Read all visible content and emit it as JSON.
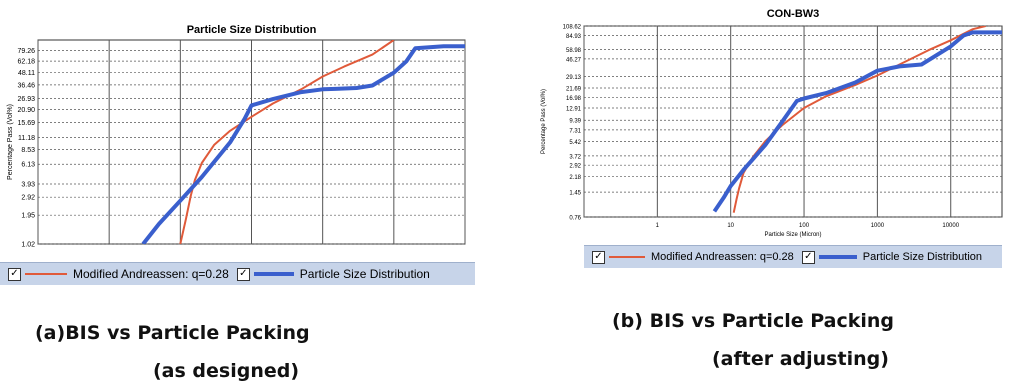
{
  "colors": {
    "model": "#e05a3a",
    "psd": "#3a5fcd",
    "grid": "#555555",
    "legend_bg": "#c7d4e9"
  },
  "chart_data": [
    {
      "type": "line",
      "title": "Particle Size Distribution",
      "xlabel": "",
      "ylabel": "Percentage Pass (Vol%)",
      "x_scale": "log",
      "xlim": [
        0.1,
        100000
      ],
      "ylim": [
        1.02,
        100
      ],
      "y_ticks": [
        "79.26",
        "62.18",
        "48.11",
        "36.46",
        "26.93",
        "20.90",
        "15.69",
        "11.18",
        "8.53",
        "6.13",
        "3.93",
        "2.92",
        "1.95",
        "1.02"
      ],
      "series": [
        {
          "name": "Modified Andreassen:  q=0.28",
          "style": "model",
          "x": [
            10,
            12,
            14,
            16,
            20,
            30,
            50,
            100,
            200,
            500,
            1000,
            2000,
            5000,
            10000
          ],
          "y": [
            1.02,
            1.8,
            3.0,
            4.3,
            6.3,
            9.5,
            13.0,
            17.8,
            24.0,
            33.0,
            44.0,
            55.0,
            72.0,
            100
          ]
        },
        {
          "name": "Particle Size Distribution",
          "style": "psd",
          "x": [
            3,
            5,
            10,
            20,
            50,
            80,
            100,
            200,
            500,
            1000,
            1500,
            3000,
            5000,
            10000,
            15000,
            20000,
            50000,
            100000
          ],
          "y": [
            1.02,
            1.6,
            2.7,
            4.6,
            10.0,
            17.0,
            23.0,
            26.5,
            31.0,
            33.0,
            33.3,
            34.0,
            36.0,
            48.0,
            62.0,
            83.0,
            87.0,
            87.0
          ]
        }
      ],
      "legend": {
        "model_label": "Modified Andreassen:  q=0.28",
        "psd_label": "Particle Size Distribution",
        "checked": "✓"
      },
      "caption_line1": "(a)BIS vs Particle Packing",
      "caption_line2": "(as designed)"
    },
    {
      "type": "line",
      "title": "CON-BW3",
      "xlabel": "Particle Size (Micron)",
      "ylabel": "Percentage Pass (Vol%)",
      "x_scale": "log",
      "xlim": [
        0.1,
        50000
      ],
      "ylim": [
        0.76,
        108.62
      ],
      "x_ticks": [
        "1",
        "10",
        "100",
        "1000",
        "10000"
      ],
      "y_ticks": [
        "108.62",
        "84.93",
        "58.98",
        "46.27",
        "29.13",
        "21.69",
        "16.98",
        "12.91",
        "9.39",
        "7.31",
        "5.42",
        "3.72",
        "2.92",
        "2.18",
        "1.45",
        "0.76"
      ],
      "series": [
        {
          "name": "Modified Andreassen:  q=0.28",
          "style": "model",
          "x": [
            11,
            12,
            13,
            15,
            20,
            30,
            50,
            100,
            200,
            500,
            1000,
            2000,
            5000,
            10000,
            20000,
            30000
          ],
          "y": [
            0.85,
            1.2,
            1.6,
            2.4,
            3.6,
            5.5,
            8.2,
            12.9,
            17.5,
            23.5,
            30.0,
            40.0,
            58.0,
            75.0,
            100.0,
            108.62
          ]
        },
        {
          "name": "Particle Size Distribution",
          "style": "psd",
          "x": [
            6,
            8,
            10,
            15,
            20,
            30,
            50,
            80,
            100,
            200,
            500,
            1000,
            2000,
            4000,
            10000,
            15000,
            20000,
            50000
          ],
          "y": [
            0.88,
            1.25,
            1.7,
            2.6,
            3.4,
            5.0,
            9.0,
            15.5,
            16.5,
            19.0,
            25.0,
            34.0,
            38.0,
            40.0,
            64.0,
            84.93,
            92.0,
            92.0
          ]
        }
      ],
      "legend": {
        "model_label": "Modified Andreassen:  q=0.28",
        "psd_label": "Particle Size Distribution",
        "checked": "✓"
      },
      "caption_line1": "(b) BIS vs Particle Packing",
      "caption_line2": "(after adjusting)"
    }
  ]
}
